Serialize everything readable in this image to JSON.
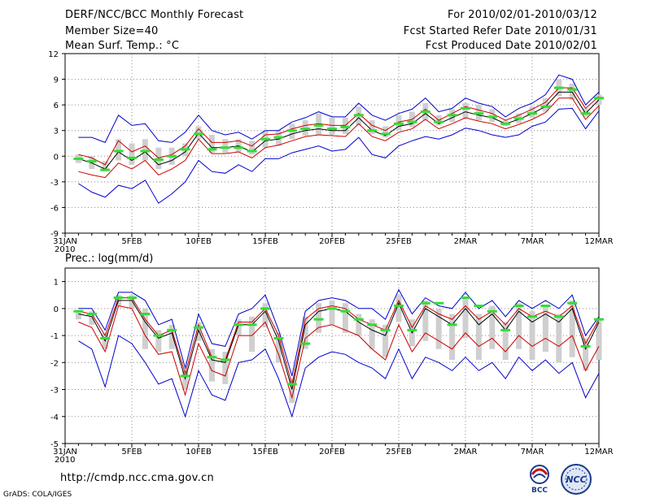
{
  "header": {
    "left": [
      "DERF/NCC/BCC Monthly Forecast",
      "Member Size=40",
      "Mean Surf. Temp.: °C"
    ],
    "right": [
      "For 2010/02/01-2010/03/12",
      "Fcst Started Refer Date 2010/01/31",
      "Fcst Produced Date 2010/02/01"
    ]
  },
  "footer": {
    "url": "http://cmdp.ncc.cma.gov.cn",
    "grads": "GrADS: COLA/IGES",
    "logo_bcc": "BCC",
    "logo_ncc": "NCC"
  },
  "colors": {
    "mean": "#000000",
    "spread": "#cc0000",
    "range": "#0000cc",
    "box": "#cfcfcf",
    "median": "#33dd33",
    "grid": "#888888"
  },
  "chart_data": [
    {
      "type": "line",
      "title": "Mean Surf. Temp.: °C",
      "x_ticks": [
        {
          "i": 0,
          "label": "31JAN",
          "sub": "2010"
        },
        {
          "i": 5,
          "label": "5FEB"
        },
        {
          "i": 10,
          "label": "10FEB"
        },
        {
          "i": 15,
          "label": "15FEB"
        },
        {
          "i": 20,
          "label": "20FEB"
        },
        {
          "i": 25,
          "label": "25FEB"
        },
        {
          "i": 30,
          "label": "2MAR"
        },
        {
          "i": 35,
          "label": "7MAR"
        },
        {
          "i": 40,
          "label": "12MAR"
        }
      ],
      "ylim": [
        -9,
        12
      ],
      "y_ticks": [
        -9,
        -6,
        -3,
        0,
        3,
        6,
        9,
        12
      ],
      "x": [
        1,
        2,
        3,
        4,
        5,
        6,
        7,
        8,
        9,
        10,
        11,
        12,
        13,
        14,
        15,
        16,
        17,
        18,
        19,
        20,
        21,
        22,
        23,
        24,
        25,
        26,
        27,
        28,
        29,
        30,
        31,
        32,
        33,
        34,
        35,
        36,
        37,
        38,
        39,
        40
      ],
      "series": [
        {
          "name": "mean",
          "values": [
            -0.3,
            -0.8,
            -1.5,
            0.5,
            -0.5,
            0.5,
            -1.0,
            -0.5,
            0.5,
            2.7,
            1.0,
            1.0,
            1.2,
            0.5,
            1.8,
            2.0,
            2.6,
            3.0,
            3.2,
            3.0,
            3.0,
            4.5,
            3.0,
            2.4,
            3.5,
            3.8,
            5.0,
            3.8,
            4.5,
            5.2,
            4.8,
            4.5,
            3.8,
            4.3,
            5.0,
            5.8,
            7.5,
            7.5,
            5.0,
            6.6
          ]
        },
        {
          "name": "upper_spread",
          "values": [
            0.2,
            -0.2,
            -1.0,
            1.8,
            0.5,
            1.2,
            -0.2,
            0.2,
            1.2,
            3.2,
            1.6,
            1.6,
            1.8,
            1.2,
            2.5,
            2.6,
            3.2,
            3.6,
            3.8,
            3.6,
            3.6,
            5.0,
            3.6,
            3.0,
            4.0,
            4.3,
            5.5,
            4.2,
            5.0,
            5.8,
            5.4,
            5.0,
            4.2,
            4.8,
            5.5,
            6.3,
            8.0,
            8.0,
            5.6,
            7.0
          ]
        },
        {
          "name": "lower_spread",
          "values": [
            -1.8,
            -2.2,
            -2.5,
            -0.8,
            -1.5,
            -0.5,
            -2.2,
            -1.5,
            -0.5,
            2.0,
            0.3,
            0.3,
            0.5,
            -0.2,
            1.0,
            1.3,
            1.8,
            2.3,
            2.5,
            2.4,
            2.3,
            3.8,
            2.3,
            1.8,
            2.8,
            3.2,
            4.3,
            3.2,
            3.8,
            4.5,
            4.1,
            3.8,
            3.2,
            3.7,
            4.3,
            5.1,
            6.8,
            6.8,
            4.3,
            5.9
          ]
        },
        {
          "name": "max",
          "values": [
            2.2,
            2.2,
            1.6,
            4.8,
            3.6,
            3.8,
            1.8,
            1.6,
            2.8,
            4.8,
            3.0,
            2.5,
            2.8,
            2.0,
            3.0,
            3.0,
            4.0,
            4.5,
            5.2,
            4.6,
            4.6,
            6.2,
            4.8,
            4.2,
            5.0,
            5.5,
            6.8,
            5.2,
            5.6,
            6.8,
            6.2,
            5.8,
            4.6,
            5.6,
            6.2,
            7.2,
            9.5,
            9.0,
            6.0,
            7.5
          ]
        },
        {
          "name": "min",
          "values": [
            -3.2,
            -4.2,
            -4.8,
            -3.4,
            -3.8,
            -2.8,
            -5.5,
            -4.4,
            -3.0,
            -0.5,
            -1.8,
            -2.0,
            -1.0,
            -1.8,
            -0.3,
            -0.3,
            0.4,
            0.8,
            1.2,
            0.6,
            0.8,
            2.2,
            0.2,
            -0.2,
            1.2,
            1.8,
            2.3,
            2.0,
            2.5,
            3.3,
            3.0,
            2.5,
            2.2,
            2.5,
            3.5,
            4.0,
            5.5,
            5.6,
            3.2,
            5.3
          ]
        },
        {
          "name": "box_top",
          "values": [
            0.2,
            0.0,
            -0.6,
            2.0,
            1.5,
            2.0,
            1.0,
            1.0,
            1.5,
            3.5,
            2.5,
            2.0,
            2.0,
            1.8,
            3.0,
            3.0,
            3.8,
            4.2,
            5.0,
            4.5,
            4.5,
            5.8,
            4.2,
            3.5,
            4.8,
            5.2,
            6.2,
            4.8,
            5.5,
            6.2,
            6.0,
            5.5,
            4.2,
            5.0,
            5.8,
            6.8,
            9.0,
            8.5,
            5.6,
            7.2
          ]
        },
        {
          "name": "box_bottom",
          "values": [
            -0.8,
            -1.5,
            -1.8,
            -0.5,
            -1.0,
            -0.5,
            -1.5,
            -1.0,
            0.0,
            2.0,
            0.4,
            0.4,
            0.5,
            0.2,
            1.0,
            1.2,
            2.0,
            2.4,
            2.5,
            2.5,
            2.6,
            3.6,
            2.6,
            2.2,
            3.0,
            3.4,
            4.2,
            3.6,
            4.0,
            4.4,
            4.2,
            4.0,
            3.5,
            3.8,
            4.5,
            5.2,
            7.0,
            6.6,
            4.6,
            6.0
          ]
        },
        {
          "name": "median",
          "values": [
            -0.3,
            -0.6,
            -1.6,
            0.6,
            -0.2,
            0.6,
            -0.4,
            0.0,
            0.8,
            2.6,
            0.8,
            1.0,
            1.0,
            0.6,
            2.0,
            2.2,
            3.0,
            3.2,
            3.6,
            3.2,
            3.4,
            4.8,
            3.0,
            2.6,
            3.8,
            4.0,
            5.2,
            4.0,
            4.8,
            5.6,
            5.0,
            4.6,
            3.8,
            4.4,
            5.0,
            5.8,
            8.0,
            7.8,
            5.0,
            6.8
          ]
        }
      ]
    },
    {
      "type": "line",
      "title": "Prec.: log(mm/d)",
      "x_ticks": [
        {
          "i": 0,
          "label": "31JAN",
          "sub": "2010"
        },
        {
          "i": 5,
          "label": "5FEB"
        },
        {
          "i": 10,
          "label": "10FEB"
        },
        {
          "i": 15,
          "label": "15FEB"
        },
        {
          "i": 20,
          "label": "20FEB"
        },
        {
          "i": 25,
          "label": "25FEB"
        },
        {
          "i": 30,
          "label": "2MAR"
        },
        {
          "i": 35,
          "label": "7MAR"
        },
        {
          "i": 40,
          "label": "12MAR"
        }
      ],
      "ylim": [
        -5,
        1.5
      ],
      "y_ticks": [
        -5,
        -4,
        -3,
        -2,
        -1,
        0,
        1
      ],
      "x": [
        1,
        2,
        3,
        4,
        5,
        6,
        7,
        8,
        9,
        10,
        11,
        12,
        13,
        14,
        15,
        16,
        17,
        18,
        19,
        20,
        21,
        22,
        23,
        24,
        25,
        26,
        27,
        28,
        29,
        30,
        31,
        32,
        33,
        34,
        35,
        36,
        37,
        38,
        39,
        40
      ],
      "series": [
        {
          "name": "mean",
          "values": [
            -0.2,
            -0.3,
            -1.2,
            0.3,
            0.3,
            -0.5,
            -1.1,
            -0.9,
            -2.6,
            -0.8,
            -1.9,
            -2.0,
            -0.6,
            -0.6,
            -0.1,
            -1.2,
            -3.0,
            -0.6,
            -0.1,
            0.0,
            -0.1,
            -0.5,
            -0.8,
            -1.0,
            0.2,
            -0.9,
            0.0,
            -0.3,
            -0.6,
            0.0,
            -0.6,
            -0.2,
            -0.8,
            -0.1,
            -0.5,
            -0.2,
            -0.5,
            0.0,
            -1.5,
            -0.5
          ]
        },
        {
          "name": "upper_spread",
          "values": [
            -0.1,
            -0.2,
            -1.0,
            0.4,
            0.4,
            -0.4,
            -1.0,
            -0.8,
            -2.4,
            -0.6,
            -1.8,
            -1.9,
            -0.5,
            -0.5,
            0.0,
            -1.0,
            -2.8,
            -0.4,
            0.0,
            0.1,
            0.0,
            -0.4,
            -0.6,
            -0.8,
            0.3,
            -0.7,
            0.1,
            -0.2,
            -0.4,
            0.1,
            -0.4,
            -0.1,
            -0.6,
            0.0,
            -0.3,
            -0.1,
            -0.3,
            0.1,
            -1.3,
            -0.4
          ]
        },
        {
          "name": "lower_spread",
          "values": [
            -0.5,
            -0.7,
            -1.6,
            0.1,
            0.0,
            -1.0,
            -1.7,
            -1.6,
            -3.2,
            -1.3,
            -2.3,
            -2.5,
            -1.0,
            -1.0,
            -0.5,
            -1.7,
            -3.3,
            -1.1,
            -0.7,
            -0.6,
            -0.8,
            -1.0,
            -1.5,
            -1.9,
            -0.6,
            -1.6,
            -0.9,
            -1.2,
            -1.5,
            -0.9,
            -1.4,
            -1.1,
            -1.6,
            -1.0,
            -1.4,
            -1.1,
            -1.4,
            -1.0,
            -2.3,
            -1.4
          ]
        },
        {
          "name": "max",
          "values": [
            0.0,
            0.0,
            -0.8,
            0.6,
            0.6,
            0.3,
            -0.6,
            -0.4,
            -2.2,
            -0.2,
            -1.3,
            -1.4,
            -0.2,
            0.0,
            0.5,
            -0.8,
            -2.5,
            -0.1,
            0.3,
            0.4,
            0.3,
            0.0,
            0.0,
            -0.4,
            0.7,
            -0.2,
            0.4,
            0.1,
            0.0,
            0.6,
            0.0,
            0.3,
            -0.3,
            0.3,
            0.0,
            0.3,
            0.0,
            0.5,
            -1.0,
            -0.3
          ]
        },
        {
          "name": "min",
          "values": [
            -1.2,
            -1.5,
            -2.9,
            -1.0,
            -1.3,
            -2.0,
            -2.8,
            -2.6,
            -4.0,
            -2.3,
            -3.2,
            -3.4,
            -2.0,
            -1.9,
            -1.5,
            -2.6,
            -4.0,
            -2.2,
            -1.8,
            -1.6,
            -1.7,
            -2.0,
            -2.2,
            -2.6,
            -1.5,
            -2.6,
            -1.8,
            -2.0,
            -2.3,
            -1.8,
            -2.3,
            -2.0,
            -2.6,
            -1.8,
            -2.3,
            -1.9,
            -2.4,
            -2.0,
            -3.3,
            -2.4
          ]
        },
        {
          "name": "box_top",
          "values": [
            -0.1,
            -0.1,
            -0.9,
            0.5,
            0.5,
            0.0,
            -0.8,
            -0.6,
            -2.3,
            -0.5,
            -1.5,
            -1.6,
            -0.4,
            -0.3,
            0.2,
            -0.9,
            -2.6,
            -0.3,
            0.2,
            0.3,
            0.2,
            -0.2,
            -0.4,
            -0.6,
            0.5,
            -0.4,
            0.3,
            0.0,
            -0.2,
            0.4,
            -0.2,
            0.1,
            -0.5,
            0.2,
            -0.1,
            0.1,
            -0.2,
            0.3,
            -1.1,
            -0.4
          ]
        },
        {
          "name": "box_bottom",
          "values": [
            -0.4,
            -0.6,
            -1.5,
            0.1,
            0.0,
            -1.5,
            -1.6,
            -1.5,
            -3.0,
            -1.2,
            -2.7,
            -2.8,
            -1.0,
            -1.6,
            -0.7,
            -2.0,
            -3.5,
            -1.5,
            -0.9,
            -0.6,
            -0.9,
            -1.0,
            -1.5,
            -1.8,
            -0.5,
            -1.4,
            -1.2,
            -1.5,
            -1.9,
            -1.1,
            -1.9,
            -1.5,
            -1.9,
            -1.5,
            -1.9,
            -1.6,
            -2.0,
            -1.8,
            -2.3,
            -1.9
          ]
        },
        {
          "name": "median",
          "values": [
            -0.1,
            -0.2,
            -1.1,
            0.4,
            0.4,
            -0.2,
            -1.0,
            -0.8,
            -2.5,
            -0.7,
            -1.8,
            -1.9,
            -0.6,
            -0.6,
            0.0,
            -1.1,
            -2.8,
            -1.3,
            -0.4,
            0.0,
            -0.1,
            -0.4,
            -0.6,
            -0.8,
            0.1,
            -0.8,
            0.2,
            0.2,
            -0.6,
            0.4,
            0.1,
            -0.1,
            -0.8,
            0.1,
            -0.3,
            0.1,
            -0.3,
            0.2,
            -1.4,
            -0.4
          ]
        }
      ]
    }
  ]
}
